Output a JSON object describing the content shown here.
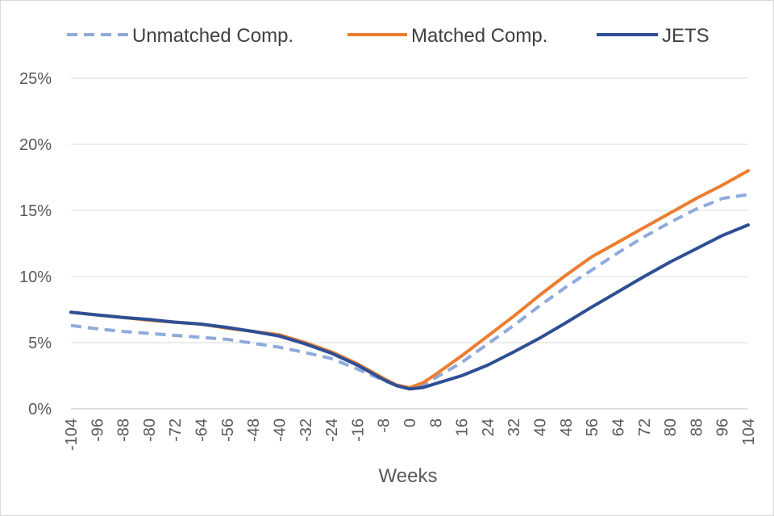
{
  "chart_data": {
    "type": "line",
    "xlabel": "Weeks",
    "ylabel": "",
    "xlim": [
      -104,
      104
    ],
    "ylim": [
      0,
      25
    ],
    "x_ticks": [
      -104,
      -96,
      -88,
      -80,
      -72,
      -64,
      -56,
      -48,
      -40,
      -32,
      -24,
      -16,
      -8,
      0,
      8,
      16,
      24,
      32,
      40,
      48,
      56,
      64,
      72,
      80,
      88,
      96,
      104
    ],
    "y_ticks": [
      0,
      5,
      10,
      15,
      20,
      25
    ],
    "y_tick_labels": [
      "0%",
      "5%",
      "10%",
      "15%",
      "20%",
      "25%"
    ],
    "grid": "horizontal",
    "legend_position": "top",
    "series": [
      {
        "name": "Unmatched Comp.",
        "color": "#8faadc",
        "dash": "dashed",
        "x": [
          -104,
          -96,
          -88,
          -80,
          -72,
          -64,
          -56,
          -48,
          -40,
          -32,
          -24,
          -16,
          -8,
          -4,
          0,
          4,
          8,
          16,
          24,
          32,
          40,
          48,
          56,
          64,
          72,
          80,
          88,
          96,
          104
        ],
        "y": [
          6.3,
          6.05,
          5.85,
          5.7,
          5.55,
          5.4,
          5.25,
          4.95,
          4.65,
          4.25,
          3.8,
          3.0,
          2.15,
          1.75,
          1.55,
          1.8,
          2.35,
          3.5,
          4.9,
          6.3,
          7.8,
          9.2,
          10.5,
          11.8,
          13.0,
          14.1,
          15.1,
          15.9,
          16.2
        ]
      },
      {
        "name": "Matched Comp.",
        "color": "#ed7d31",
        "dash": "solid",
        "x": [
          -104,
          -96,
          -88,
          -80,
          -72,
          -64,
          -56,
          -48,
          -40,
          -32,
          -24,
          -16,
          -8,
          -4,
          0,
          4,
          8,
          16,
          24,
          32,
          40,
          48,
          56,
          64,
          72,
          80,
          88,
          96,
          104
        ],
        "y": [
          7.3,
          7.1,
          6.9,
          6.7,
          6.55,
          6.4,
          6.1,
          5.85,
          5.6,
          5.0,
          4.3,
          3.4,
          2.3,
          1.8,
          1.6,
          1.95,
          2.6,
          4.0,
          5.5,
          7.0,
          8.6,
          10.1,
          11.5,
          12.6,
          13.7,
          14.8,
          15.9,
          16.9,
          18.0
        ]
      },
      {
        "name": "JETS",
        "color": "#2e4f94",
        "dash": "solid",
        "x": [
          -104,
          -96,
          -88,
          -80,
          -72,
          -64,
          -56,
          -48,
          -40,
          -32,
          -24,
          -16,
          -8,
          -4,
          0,
          4,
          8,
          16,
          24,
          32,
          40,
          48,
          56,
          64,
          72,
          80,
          88,
          96,
          104
        ],
        "y": [
          7.3,
          7.1,
          6.9,
          6.75,
          6.55,
          6.4,
          6.15,
          5.85,
          5.5,
          4.9,
          4.2,
          3.3,
          2.2,
          1.75,
          1.5,
          1.6,
          1.9,
          2.5,
          3.3,
          4.3,
          5.35,
          6.5,
          7.7,
          8.85,
          10.0,
          11.1,
          12.1,
          13.1,
          13.9
        ]
      }
    ]
  }
}
